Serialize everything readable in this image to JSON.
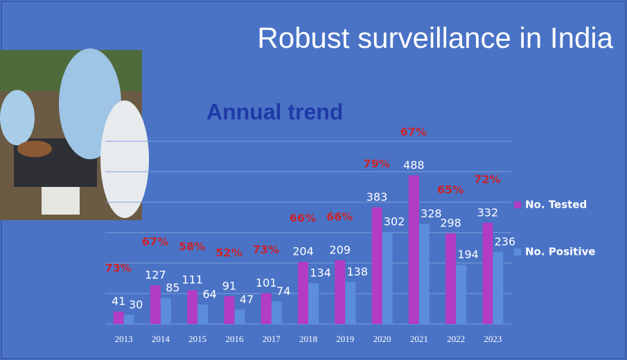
{
  "chart_data": {
    "type": "bar",
    "title": "Robust surveillance in India",
    "subtitle": "Annual trend",
    "categories": [
      "2013",
      "2014",
      "2015",
      "2016",
      "2017",
      "2018",
      "2019",
      "2020",
      "2021",
      "2022",
      "2023"
    ],
    "series": [
      {
        "name": "No. Tested",
        "color": "#b23cc4",
        "values": [
          41,
          127,
          111,
          91,
          101,
          204,
          209,
          383,
          488,
          298,
          332
        ]
      },
      {
        "name": "No. Positive",
        "color": "#5b8ddc",
        "values": [
          30,
          85,
          64,
          47,
          74,
          134,
          138,
          302,
          328,
          194,
          236
        ]
      }
    ],
    "positivity": {
      "values": [
        73,
        67,
        58,
        52,
        73,
        66,
        66,
        79,
        67,
        65,
        72
      ],
      "value_labels": [
        "73%",
        "67%",
        "58%",
        "52%",
        "73%",
        "66%",
        "66%",
        "79%",
        "67%",
        "65%",
        "72%"
      ]
    },
    "ylim": [
      0,
      600
    ],
    "yticks": [
      0,
      100,
      200,
      300,
      400,
      500,
      600
    ],
    "grid": true
  }
}
